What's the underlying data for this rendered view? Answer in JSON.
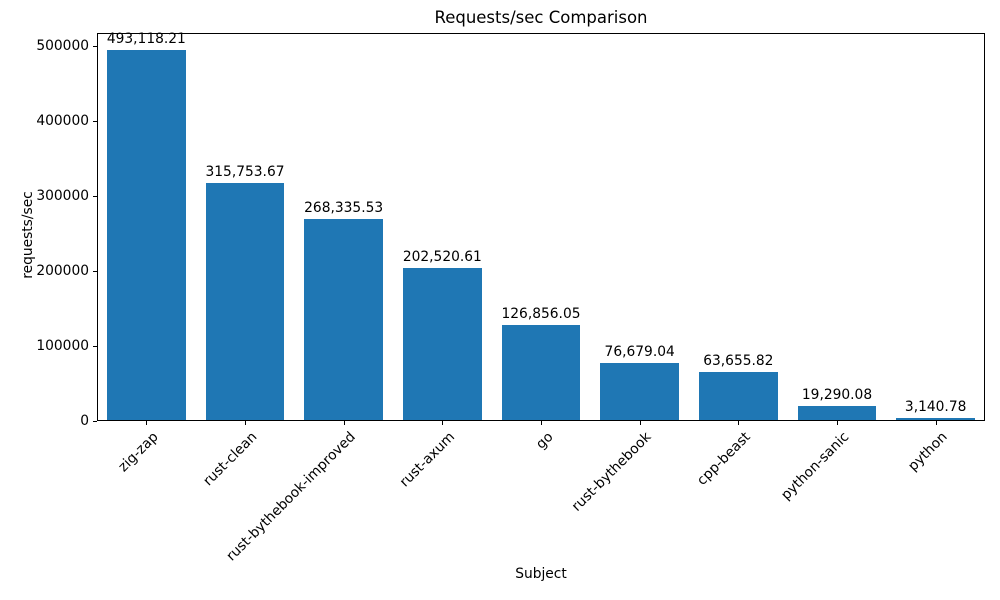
{
  "chart_data": {
    "type": "bar",
    "title": "Requests/sec Comparison",
    "xlabel": "Subject",
    "ylabel": "requests/sec",
    "categories": [
      "zig-zap",
      "rust-clean",
      "rust-bythebook-improved",
      "rust-axum",
      "go",
      "rust-bythebook",
      "cpp-beast",
      "python-sanic",
      "python"
    ],
    "values": [
      493118.21,
      315753.67,
      268335.53,
      202520.61,
      126856.05,
      76679.04,
      63655.82,
      19290.08,
      3140.78
    ],
    "value_labels": [
      "493,118.21",
      "315,753.67",
      "268,335.53",
      "202,520.61",
      "126,856.05",
      "76,679.04",
      "63,655.82",
      "19,290.08",
      "3,140.78"
    ],
    "yticks": [
      0,
      100000,
      200000,
      300000,
      400000,
      500000
    ],
    "ytick_labels": [
      "0",
      "100000",
      "200000",
      "300000",
      "400000",
      "500000"
    ],
    "ylim": [
      0,
      517774
    ],
    "bar_color": "#1f77b4",
    "bar_width_ratio": 0.8,
    "grid": false,
    "legend_position": "none",
    "x_label_rotation_deg": 45
  }
}
